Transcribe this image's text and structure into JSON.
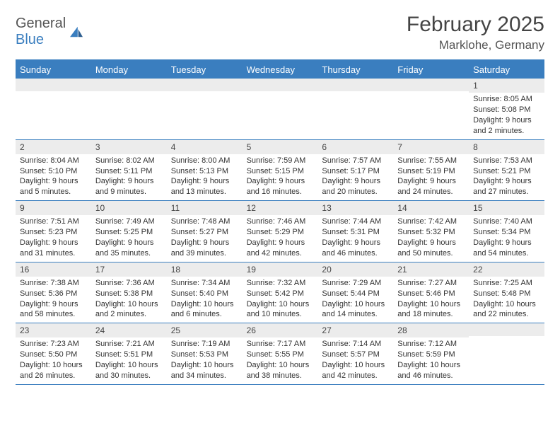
{
  "logo": {
    "word1": "General",
    "word2": "Blue"
  },
  "title": "February 2025",
  "location": "Marklohe, Germany",
  "colors": {
    "brand": "#3a7ebf",
    "headerText": "#444444",
    "bodyText": "#333333",
    "stripe": "#ececec",
    "background": "#ffffff"
  },
  "dayNames": [
    "Sunday",
    "Monday",
    "Tuesday",
    "Wednesday",
    "Thursday",
    "Friday",
    "Saturday"
  ],
  "weeks": [
    [
      {
        "n": "",
        "sr": "",
        "ss": "",
        "dl": ""
      },
      {
        "n": "",
        "sr": "",
        "ss": "",
        "dl": ""
      },
      {
        "n": "",
        "sr": "",
        "ss": "",
        "dl": ""
      },
      {
        "n": "",
        "sr": "",
        "ss": "",
        "dl": ""
      },
      {
        "n": "",
        "sr": "",
        "ss": "",
        "dl": ""
      },
      {
        "n": "",
        "sr": "",
        "ss": "",
        "dl": ""
      },
      {
        "n": "1",
        "sr": "Sunrise: 8:05 AM",
        "ss": "Sunset: 5:08 PM",
        "dl": "Daylight: 9 hours and 2 minutes."
      }
    ],
    [
      {
        "n": "2",
        "sr": "Sunrise: 8:04 AM",
        "ss": "Sunset: 5:10 PM",
        "dl": "Daylight: 9 hours and 5 minutes."
      },
      {
        "n": "3",
        "sr": "Sunrise: 8:02 AM",
        "ss": "Sunset: 5:11 PM",
        "dl": "Daylight: 9 hours and 9 minutes."
      },
      {
        "n": "4",
        "sr": "Sunrise: 8:00 AM",
        "ss": "Sunset: 5:13 PM",
        "dl": "Daylight: 9 hours and 13 minutes."
      },
      {
        "n": "5",
        "sr": "Sunrise: 7:59 AM",
        "ss": "Sunset: 5:15 PM",
        "dl": "Daylight: 9 hours and 16 minutes."
      },
      {
        "n": "6",
        "sr": "Sunrise: 7:57 AM",
        "ss": "Sunset: 5:17 PM",
        "dl": "Daylight: 9 hours and 20 minutes."
      },
      {
        "n": "7",
        "sr": "Sunrise: 7:55 AM",
        "ss": "Sunset: 5:19 PM",
        "dl": "Daylight: 9 hours and 24 minutes."
      },
      {
        "n": "8",
        "sr": "Sunrise: 7:53 AM",
        "ss": "Sunset: 5:21 PM",
        "dl": "Daylight: 9 hours and 27 minutes."
      }
    ],
    [
      {
        "n": "9",
        "sr": "Sunrise: 7:51 AM",
        "ss": "Sunset: 5:23 PM",
        "dl": "Daylight: 9 hours and 31 minutes."
      },
      {
        "n": "10",
        "sr": "Sunrise: 7:49 AM",
        "ss": "Sunset: 5:25 PM",
        "dl": "Daylight: 9 hours and 35 minutes."
      },
      {
        "n": "11",
        "sr": "Sunrise: 7:48 AM",
        "ss": "Sunset: 5:27 PM",
        "dl": "Daylight: 9 hours and 39 minutes."
      },
      {
        "n": "12",
        "sr": "Sunrise: 7:46 AM",
        "ss": "Sunset: 5:29 PM",
        "dl": "Daylight: 9 hours and 42 minutes."
      },
      {
        "n": "13",
        "sr": "Sunrise: 7:44 AM",
        "ss": "Sunset: 5:31 PM",
        "dl": "Daylight: 9 hours and 46 minutes."
      },
      {
        "n": "14",
        "sr": "Sunrise: 7:42 AM",
        "ss": "Sunset: 5:32 PM",
        "dl": "Daylight: 9 hours and 50 minutes."
      },
      {
        "n": "15",
        "sr": "Sunrise: 7:40 AM",
        "ss": "Sunset: 5:34 PM",
        "dl": "Daylight: 9 hours and 54 minutes."
      }
    ],
    [
      {
        "n": "16",
        "sr": "Sunrise: 7:38 AM",
        "ss": "Sunset: 5:36 PM",
        "dl": "Daylight: 9 hours and 58 minutes."
      },
      {
        "n": "17",
        "sr": "Sunrise: 7:36 AM",
        "ss": "Sunset: 5:38 PM",
        "dl": "Daylight: 10 hours and 2 minutes."
      },
      {
        "n": "18",
        "sr": "Sunrise: 7:34 AM",
        "ss": "Sunset: 5:40 PM",
        "dl": "Daylight: 10 hours and 6 minutes."
      },
      {
        "n": "19",
        "sr": "Sunrise: 7:32 AM",
        "ss": "Sunset: 5:42 PM",
        "dl": "Daylight: 10 hours and 10 minutes."
      },
      {
        "n": "20",
        "sr": "Sunrise: 7:29 AM",
        "ss": "Sunset: 5:44 PM",
        "dl": "Daylight: 10 hours and 14 minutes."
      },
      {
        "n": "21",
        "sr": "Sunrise: 7:27 AM",
        "ss": "Sunset: 5:46 PM",
        "dl": "Daylight: 10 hours and 18 minutes."
      },
      {
        "n": "22",
        "sr": "Sunrise: 7:25 AM",
        "ss": "Sunset: 5:48 PM",
        "dl": "Daylight: 10 hours and 22 minutes."
      }
    ],
    [
      {
        "n": "23",
        "sr": "Sunrise: 7:23 AM",
        "ss": "Sunset: 5:50 PM",
        "dl": "Daylight: 10 hours and 26 minutes."
      },
      {
        "n": "24",
        "sr": "Sunrise: 7:21 AM",
        "ss": "Sunset: 5:51 PM",
        "dl": "Daylight: 10 hours and 30 minutes."
      },
      {
        "n": "25",
        "sr": "Sunrise: 7:19 AM",
        "ss": "Sunset: 5:53 PM",
        "dl": "Daylight: 10 hours and 34 minutes."
      },
      {
        "n": "26",
        "sr": "Sunrise: 7:17 AM",
        "ss": "Sunset: 5:55 PM",
        "dl": "Daylight: 10 hours and 38 minutes."
      },
      {
        "n": "27",
        "sr": "Sunrise: 7:14 AM",
        "ss": "Sunset: 5:57 PM",
        "dl": "Daylight: 10 hours and 42 minutes."
      },
      {
        "n": "28",
        "sr": "Sunrise: 7:12 AM",
        "ss": "Sunset: 5:59 PM",
        "dl": "Daylight: 10 hours and 46 minutes."
      },
      {
        "n": "",
        "sr": "",
        "ss": "",
        "dl": ""
      }
    ]
  ]
}
